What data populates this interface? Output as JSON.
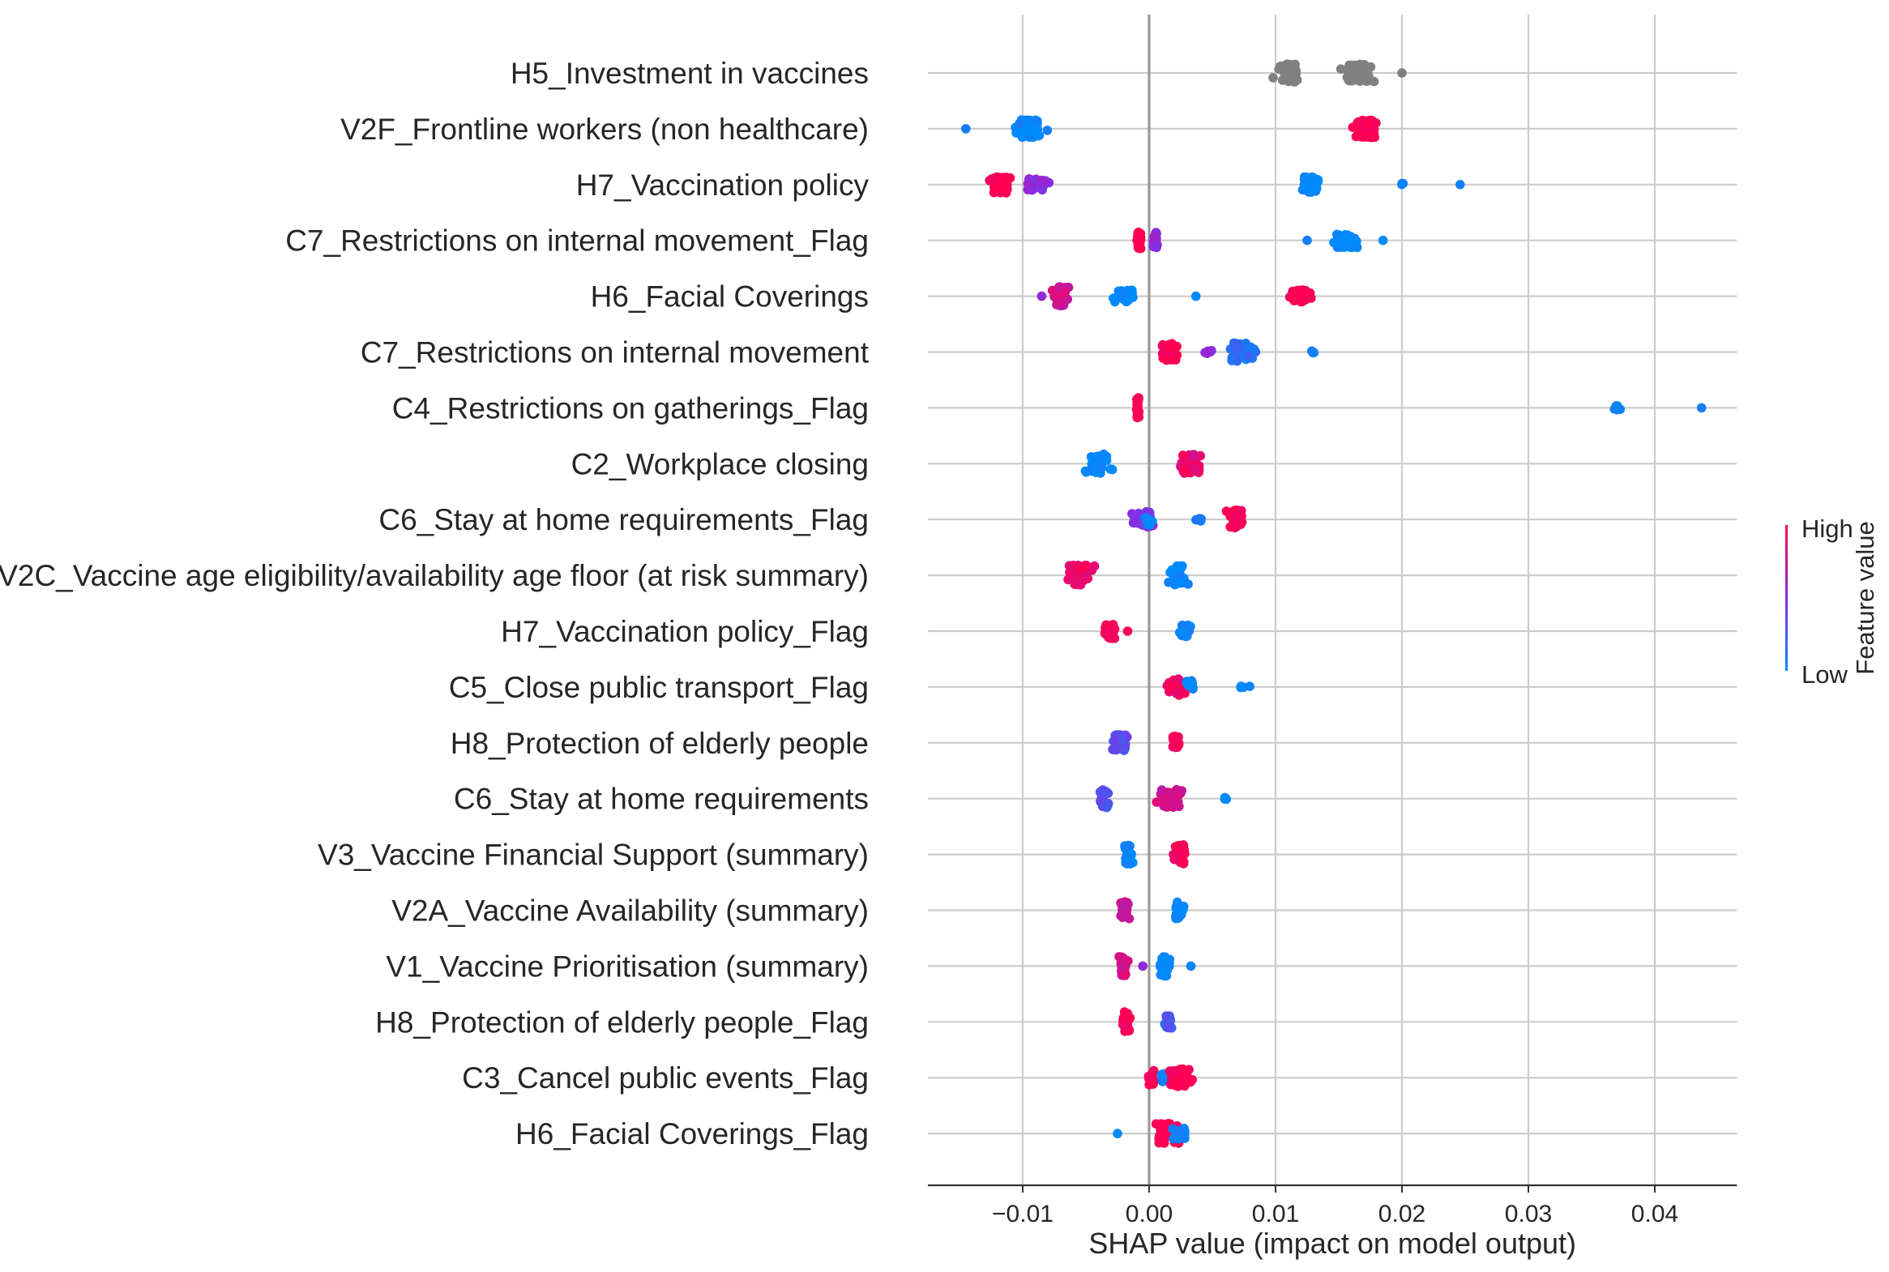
{
  "chart_data": {
    "type": "scatter",
    "subtype": "shap-beeswarm",
    "xlabel": "SHAP value (impact on model output)",
    "xlim": [
      -0.0175,
      0.0465
    ],
    "xticks": [
      -0.01,
      0.0,
      0.01,
      0.02,
      0.03,
      0.04
    ],
    "xtick_labels": [
      "−0.01",
      "0.00",
      "0.01",
      "0.02",
      "0.03",
      "0.04"
    ],
    "grid": true,
    "colors": {
      "low": "#008bfb",
      "mid": "#8a2be2",
      "high": "#ff0052",
      "neutral": "#808080",
      "grid": "#cccccc",
      "zero_line": "#999999"
    },
    "colorbar": {
      "title": "Feature value",
      "high_label": "High",
      "low_label": "Low",
      "placement": "right"
    },
    "features": [
      {
        "name": "H5_Investment in vaccines",
        "clusters": [
          {
            "x": 0.011,
            "spread": 0.0012,
            "n": 55,
            "width": 0.32,
            "v": null
          },
          {
            "x": 0.0165,
            "spread": 0.0015,
            "n": 70,
            "width": 0.32,
            "v": null
          },
          {
            "x": 0.02,
            "spread": 0.0001,
            "n": 1,
            "width": 0.0,
            "v": null
          }
        ]
      },
      {
        "name": "V2F_Frontline workers  (non healthcare)",
        "clusters": [
          {
            "x": -0.0145,
            "spread": 0.0001,
            "n": 1,
            "width": 0.0,
            "v": 0.0
          },
          {
            "x": -0.0095,
            "spread": 0.0013,
            "n": 60,
            "width": 0.32,
            "v": 0.0
          },
          {
            "x": 0.0172,
            "spread": 0.001,
            "n": 55,
            "width": 0.32,
            "v": 1.0
          }
        ]
      },
      {
        "name": "H7_Vaccination policy",
        "clusters": [
          {
            "x": -0.0118,
            "spread": 0.0011,
            "n": 45,
            "width": 0.3,
            "v": 1.0
          },
          {
            "x": -0.009,
            "spread": 0.0011,
            "n": 25,
            "width": 0.22,
            "v": 0.5
          },
          {
            "x": 0.0128,
            "spread": 0.0009,
            "n": 35,
            "width": 0.28,
            "v": 0.0
          },
          {
            "x": 0.02,
            "spread": 0.0002,
            "n": 3,
            "width": 0.05,
            "v": 0.0
          },
          {
            "x": 0.0246,
            "spread": 0.0001,
            "n": 1,
            "width": 0.0,
            "v": 0.0
          }
        ]
      },
      {
        "name": "C7_Restrictions on internal movement_Flag",
        "clusters": [
          {
            "x": -0.0008,
            "spread": 0.0002,
            "n": 30,
            "width": 0.3,
            "v": 1.0
          },
          {
            "x": 0.0005,
            "spread": 0.0002,
            "n": 20,
            "width": 0.28,
            "v": 0.55
          },
          {
            "x": 0.0155,
            "spread": 0.0012,
            "n": 45,
            "width": 0.26,
            "v": 0.0
          },
          {
            "x": 0.0125,
            "spread": 0.0001,
            "n": 1,
            "width": 0.0,
            "v": 0.0
          },
          {
            "x": 0.0185,
            "spread": 0.0001,
            "n": 1,
            "width": 0.0,
            "v": 0.0
          }
        ]
      },
      {
        "name": "H6_Facial Coverings",
        "clusters": [
          {
            "x": -0.0072,
            "spread": 0.0008,
            "n": 40,
            "width": 0.34,
            "v": 0.78
          },
          {
            "x": -0.0085,
            "spread": 0.0001,
            "n": 1,
            "width": 0.0,
            "v": 0.55
          },
          {
            "x": -0.002,
            "spread": 0.0012,
            "n": 35,
            "width": 0.22,
            "v": 0.0
          },
          {
            "x": 0.0037,
            "spread": 0.0001,
            "n": 1,
            "width": 0.0,
            "v": 0.0
          },
          {
            "x": 0.012,
            "spread": 0.001,
            "n": 40,
            "width": 0.22,
            "v": 1.0
          }
        ]
      },
      {
        "name": "C7_Restrictions on internal movement",
        "clusters": [
          {
            "x": 0.0015,
            "spread": 0.0008,
            "n": 40,
            "width": 0.3,
            "v": 1.0
          },
          {
            "x": 0.0047,
            "spread": 0.0004,
            "n": 6,
            "width": 0.06,
            "v": 0.55
          },
          {
            "x": 0.0073,
            "spread": 0.0012,
            "n": 45,
            "width": 0.34,
            "v": 0.15
          },
          {
            "x": 0.013,
            "spread": 0.0004,
            "n": 5,
            "width": 0.04,
            "v": 0.0
          }
        ]
      },
      {
        "name": "C4_Restrictions on gatherings_Flag",
        "clusters": [
          {
            "x": -0.0009,
            "spread": 0.0001,
            "n": 35,
            "width": 0.36,
            "v": 1.0
          },
          {
            "x": 0.037,
            "spread": 0.0004,
            "n": 8,
            "width": 0.1,
            "v": 0.0
          },
          {
            "x": 0.0437,
            "spread": 0.0001,
            "n": 1,
            "width": 0.0,
            "v": 0.0
          }
        ]
      },
      {
        "name": "C2_Workplace closing",
        "clusters": [
          {
            "x": -0.004,
            "spread": 0.0011,
            "n": 45,
            "width": 0.34,
            "v": 0.0
          },
          {
            "x": 0.0033,
            "spread": 0.0012,
            "n": 55,
            "width": 0.34,
            "v": 0.9
          }
        ]
      },
      {
        "name": "C6_Stay at home requirements_Flag",
        "clusters": [
          {
            "x": -0.0005,
            "spread": 0.0011,
            "n": 40,
            "width": 0.28,
            "v": 0.45
          },
          {
            "x": 0.0,
            "spread": 0.0004,
            "n": 10,
            "width": 0.2,
            "v": 0.0
          },
          {
            "x": 0.004,
            "spread": 0.0006,
            "n": 8,
            "width": 0.06,
            "v": 0.05
          },
          {
            "x": 0.0068,
            "spread": 0.0007,
            "n": 40,
            "width": 0.34,
            "v": 1.0
          }
        ]
      },
      {
        "name": "V2C_Vaccine age eligibility/availability age floor (at risk summary)",
        "clusters": [
          {
            "x": -0.0055,
            "spread": 0.0012,
            "n": 55,
            "width": 0.36,
            "v": 0.95
          },
          {
            "x": 0.0022,
            "spread": 0.0008,
            "n": 45,
            "width": 0.34,
            "v": 0.0
          }
        ]
      },
      {
        "name": "H7_Vaccination policy_Flag",
        "clusters": [
          {
            "x": -0.003,
            "spread": 0.0006,
            "n": 30,
            "width": 0.28,
            "v": 1.0
          },
          {
            "x": -0.0017,
            "spread": 0.0001,
            "n": 1,
            "width": 0.0,
            "v": 1.0
          },
          {
            "x": 0.0028,
            "spread": 0.0008,
            "n": 30,
            "width": 0.22,
            "v": 0.0
          }
        ]
      },
      {
        "name": "C5_Close public transport_Flag",
        "clusters": [
          {
            "x": 0.0022,
            "spread": 0.0009,
            "n": 45,
            "width": 0.3,
            "v": 0.95
          },
          {
            "x": 0.0033,
            "spread": 0.0004,
            "n": 15,
            "width": 0.22,
            "v": 0.0
          },
          {
            "x": 0.0075,
            "spread": 0.0005,
            "n": 6,
            "width": 0.04,
            "v": 0.0
          }
        ]
      },
      {
        "name": "H8_Protection of elderly people",
        "clusters": [
          {
            "x": -0.0023,
            "spread": 0.0007,
            "n": 35,
            "width": 0.3,
            "v": 0.35
          },
          {
            "x": 0.0021,
            "spread": 0.0004,
            "n": 20,
            "width": 0.24,
            "v": 1.0
          }
        ]
      },
      {
        "name": "C6_Stay at home requirements",
        "clusters": [
          {
            "x": -0.0035,
            "spread": 0.0005,
            "n": 25,
            "width": 0.34,
            "v": 0.3
          },
          {
            "x": 0.0018,
            "spread": 0.0013,
            "n": 50,
            "width": 0.32,
            "v": 0.8
          },
          {
            "x": 0.006,
            "spread": 0.0004,
            "n": 5,
            "width": 0.04,
            "v": 0.0
          }
        ]
      },
      {
        "name": "V3_Vaccine Financial Support (summary)",
        "clusters": [
          {
            "x": -0.0017,
            "spread": 0.0004,
            "n": 30,
            "width": 0.34,
            "v": 0.0
          },
          {
            "x": 0.0024,
            "spread": 0.0005,
            "n": 40,
            "width": 0.34,
            "v": 1.0
          }
        ]
      },
      {
        "name": "V2A_Vaccine Availability (summary)",
        "clusters": [
          {
            "x": -0.002,
            "spread": 0.0004,
            "n": 30,
            "width": 0.3,
            "v": 0.75
          },
          {
            "x": 0.0024,
            "spread": 0.0005,
            "n": 30,
            "width": 0.3,
            "v": 0.0
          }
        ]
      },
      {
        "name": "V1_Vaccine Prioritisation (summary)",
        "clusters": [
          {
            "x": -0.002,
            "spread": 0.0004,
            "n": 35,
            "width": 0.34,
            "v": 0.85
          },
          {
            "x": -0.0005,
            "spread": 0.0001,
            "n": 1,
            "width": 0.0,
            "v": 0.55
          },
          {
            "x": 0.0013,
            "spread": 0.0005,
            "n": 35,
            "width": 0.36,
            "v": 0.0
          },
          {
            "x": 0.0033,
            "spread": 0.0001,
            "n": 1,
            "width": 0.0,
            "v": 0.0
          }
        ]
      },
      {
        "name": "H8_Protection of elderly people_Flag",
        "clusters": [
          {
            "x": -0.0018,
            "spread": 0.0004,
            "n": 40,
            "width": 0.36,
            "v": 1.0
          },
          {
            "x": 0.0015,
            "spread": 0.0005,
            "n": 20,
            "width": 0.22,
            "v": 0.25
          }
        ]
      },
      {
        "name": "C3_Cancel public events_Flag",
        "clusters": [
          {
            "x": 0.0002,
            "spread": 0.0004,
            "n": 15,
            "width": 0.26,
            "v": 1.0
          },
          {
            "x": 0.0012,
            "spread": 0.0004,
            "n": 12,
            "width": 0.14,
            "v": 0.0
          },
          {
            "x": 0.0025,
            "spread": 0.0012,
            "n": 45,
            "width": 0.32,
            "v": 1.0
          }
        ]
      },
      {
        "name": "H6_Facial Coverings_Flag",
        "clusters": [
          {
            "x": -0.0025,
            "spread": 0.0001,
            "n": 1,
            "width": 0.0,
            "v": 0.0
          },
          {
            "x": 0.0013,
            "spread": 0.0012,
            "n": 50,
            "width": 0.36,
            "v": 1.0
          },
          {
            "x": 0.0025,
            "spread": 0.0008,
            "n": 15,
            "width": 0.2,
            "v": 0.0
          }
        ]
      }
    ]
  }
}
